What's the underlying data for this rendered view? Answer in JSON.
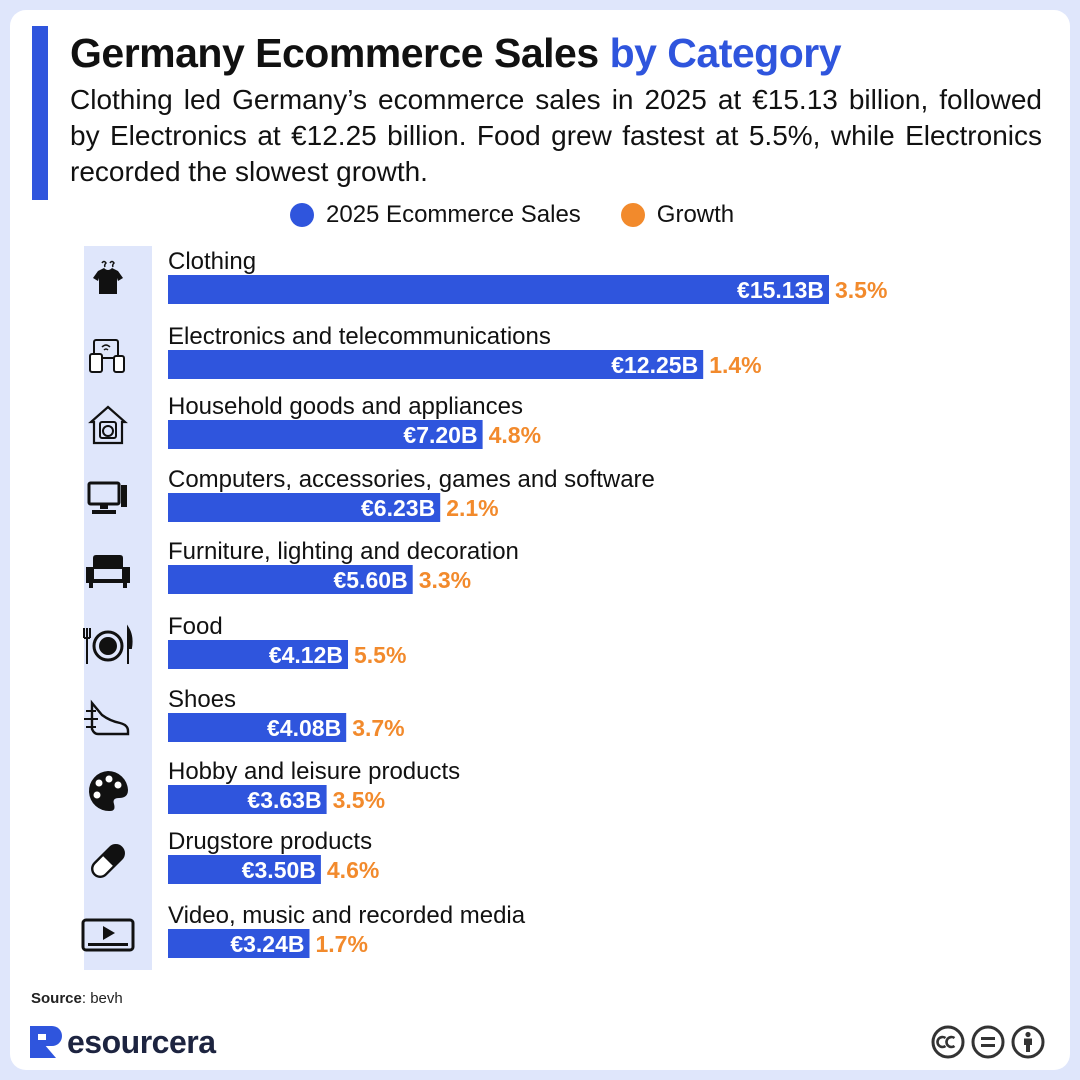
{
  "title": {
    "main": "Germany Ecommerce Sales",
    "highlight": "by Category"
  },
  "subtitle": "Clothing led Germany’s ecommerce sales in 2025 at €15.13 billion, followed by Electronics at €12.25 billion. Food grew fastest at 5.5%, while Electronics recorded the slowest growth.",
  "legend": [
    {
      "label": "2025 Ecommerce Sales",
      "color": "#2f55dd"
    },
    {
      "label": "Growth",
      "color": "#f28a2c"
    }
  ],
  "colors": {
    "accent": "#2f55dd",
    "growth": "#f28a2c",
    "icon_strip": "#dfe6fb"
  },
  "chart_data": {
    "type": "bar",
    "orientation": "horizontal",
    "title": "Germany Ecommerce Sales by Category",
    "categories": [
      "Clothing",
      "Electronics and telecommunications",
      "Household goods and appliances",
      "Computers, accessories, games and software",
      "Furniture, lighting and decoration",
      "Food",
      "Shoes",
      "Hobby and leisure products",
      "Drugstore products",
      "Video, music and recorded media"
    ],
    "icons": [
      "tshirt-icon",
      "devices-icon",
      "household-icon",
      "computer-icon",
      "armchair-icon",
      "dining-icon",
      "sneaker-icon",
      "palette-icon",
      "pill-icon",
      "video-player-icon"
    ],
    "series": [
      {
        "name": "2025 Ecommerce Sales",
        "values": [
          15.13,
          12.25,
          7.2,
          6.23,
          5.6,
          4.12,
          4.08,
          3.63,
          3.5,
          3.24
        ],
        "labels": [
          "€15.13B",
          "€12.25B",
          "€7.20B",
          "€6.23B",
          "€5.60B",
          "€4.12B",
          "€4.08B",
          "€3.63B",
          "€3.50B",
          "€3.24B"
        ],
        "unit": "€ billion"
      },
      {
        "name": "Growth",
        "values": [
          3.5,
          1.4,
          4.8,
          2.1,
          3.3,
          5.5,
          3.7,
          3.5,
          4.6,
          1.7
        ],
        "labels": [
          "3.5%",
          "1.4%",
          "4.8%",
          "2.1%",
          "3.3%",
          "5.5%",
          "3.7%",
          "3.5%",
          "4.6%",
          "1.7%"
        ],
        "unit": "%"
      }
    ],
    "legend_position": "top",
    "grid": false
  },
  "source": {
    "label": "Source",
    "text": ": bevh"
  },
  "brand": {
    "name": "esourcera"
  },
  "license": [
    "cc-icon",
    "nd-icon",
    "by-icon"
  ]
}
